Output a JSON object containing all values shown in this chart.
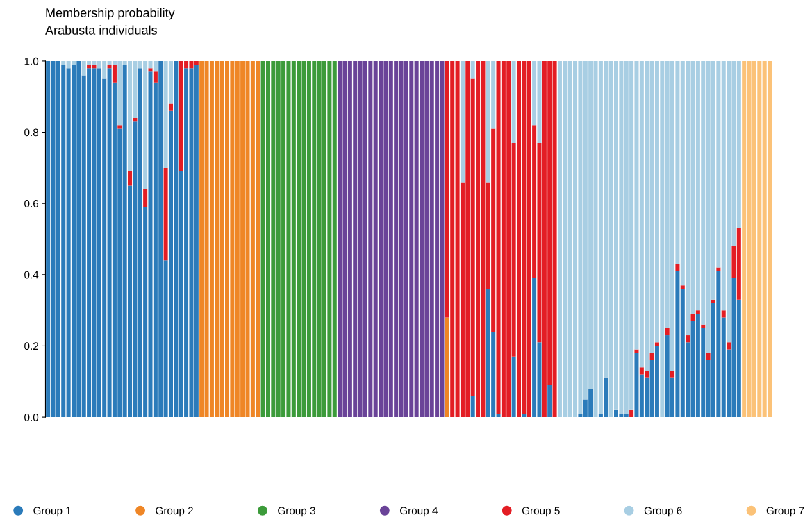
{
  "chart_data": {
    "type": "bar",
    "stacked": true,
    "title": "Membership probability",
    "subtitle": "Arabusta individuals",
    "categories": [
      null,
      null,
      null,
      null,
      null,
      null,
      null,
      null,
      null,
      null,
      null,
      null,
      null,
      null,
      null,
      null,
      null,
      null,
      null,
      null,
      null,
      null,
      null,
      null,
      null,
      null,
      null,
      null,
      null,
      null,
      null,
      null,
      null,
      null,
      null,
      null,
      null,
      null,
      null,
      null,
      null,
      null,
      null,
      null,
      null,
      null,
      null,
      null,
      null,
      null,
      null,
      null,
      null,
      null,
      null,
      null,
      null,
      null,
      null,
      null,
      null,
      null,
      null,
      null,
      null,
      null,
      null,
      null,
      null,
      null,
      null,
      null,
      null,
      null,
      null,
      null,
      null,
      null,
      null,
      null,
      null,
      null,
      null,
      null,
      null,
      null,
      null,
      null,
      null,
      null,
      null,
      null,
      null,
      null,
      null,
      null,
      null,
      null,
      null,
      null,
      null,
      null,
      null,
      null,
      null,
      null,
      null,
      null,
      null,
      null,
      null,
      null,
      null,
      null,
      null,
      null,
      null,
      null,
      null,
      null,
      null,
      null,
      null,
      null,
      null,
      null,
      null,
      null,
      null,
      null,
      null,
      null,
      null,
      null,
      null,
      null,
      null,
      null,
      null,
      null,
      null,
      null
    ],
    "series": [
      {
        "name": "Group 1",
        "color": "#2b7bba",
        "values": [
          1,
          1,
          1,
          0.99,
          0.98,
          0.99,
          1,
          0.96,
          0.98,
          0.98,
          0.98,
          0.95,
          0.98,
          0.94,
          0.81,
          0.99,
          0.65,
          0.83,
          0.98,
          0.59,
          0.97,
          0.94,
          1,
          0.44,
          0.86,
          1,
          0.69,
          0.98,
          0.98,
          0.99,
          0,
          0,
          0,
          0,
          0,
          0,
          0,
          0,
          0,
          0,
          0,
          0,
          0,
          0,
          0,
          0,
          0,
          0,
          0,
          0,
          0,
          0,
          0,
          0,
          0,
          0,
          0,
          0,
          0,
          0,
          0,
          0,
          0,
          0,
          0,
          0,
          0,
          0,
          0,
          0,
          0,
          0,
          0,
          0,
          0,
          0,
          0,
          0,
          0,
          0,
          0,
          0,
          0,
          0.06,
          0,
          0,
          0.36,
          0.24,
          0.01,
          0,
          0,
          0.17,
          0,
          0.01,
          0,
          0.39,
          0.21,
          0,
          0.09,
          0,
          0,
          0,
          0,
          0,
          0.01,
          0.05,
          0.08,
          0,
          0.01,
          0.11,
          0,
          0.02,
          0.01,
          0.01,
          0,
          0.18,
          0.12,
          0.11,
          0.16,
          0.2,
          0,
          0.23,
          0.11,
          0.41,
          0.36,
          0.21,
          0.27,
          0.29,
          0.25,
          0.16,
          0.32,
          0.41,
          0.28,
          0.19,
          0.39,
          0.33,
          0,
          0,
          0,
          0,
          0,
          0
        ]
      },
      {
        "name": "Group 2",
        "color": "#ef8626",
        "values": [
          0,
          0,
          0,
          0,
          0,
          0,
          0,
          0,
          0,
          0,
          0,
          0,
          0,
          0,
          0,
          0,
          0,
          0,
          0,
          0,
          0,
          0,
          0,
          0,
          0,
          0,
          0,
          0,
          0,
          0,
          1,
          1,
          1,
          1,
          1,
          1,
          1,
          1,
          1,
          1,
          1,
          1,
          0,
          0,
          0,
          0,
          0,
          0,
          0,
          0,
          0,
          0,
          0,
          0,
          0,
          0,
          0,
          0,
          0,
          0,
          0,
          0,
          0,
          0,
          0,
          0,
          0,
          0,
          0,
          0,
          0,
          0,
          0,
          0,
          0,
          0,
          0,
          0,
          0.28,
          0,
          0,
          0,
          0,
          0,
          0,
          0,
          0,
          0,
          0,
          0,
          0,
          0,
          0,
          0,
          0,
          0,
          0,
          0,
          0,
          0,
          0,
          0,
          0,
          0,
          0,
          0,
          0,
          0,
          0,
          0,
          0,
          0,
          0,
          0,
          0,
          0,
          0,
          0,
          0,
          0,
          0,
          0,
          0,
          0,
          0,
          0,
          0,
          0,
          0,
          0,
          0,
          0,
          0,
          0,
          0,
          0,
          0,
          0,
          0,
          0,
          0,
          0
        ]
      },
      {
        "name": "Group 3",
        "color": "#3c9b3a",
        "values": [
          0,
          0,
          0,
          0,
          0,
          0,
          0,
          0,
          0,
          0,
          0,
          0,
          0,
          0,
          0,
          0,
          0,
          0,
          0,
          0,
          0,
          0,
          0,
          0,
          0,
          0,
          0,
          0,
          0,
          0,
          0,
          0,
          0,
          0,
          0,
          0,
          0,
          0,
          0,
          0,
          0,
          0,
          1,
          1,
          1,
          1,
          1,
          1,
          1,
          1,
          1,
          1,
          1,
          1,
          1,
          1,
          1,
          0,
          0,
          0,
          0,
          0,
          0,
          0,
          0,
          0,
          0,
          0,
          0,
          0,
          0,
          0,
          0,
          0,
          0,
          0,
          0,
          0,
          0,
          0,
          0,
          0,
          0,
          0,
          0,
          0,
          0,
          0,
          0,
          0,
          0,
          0,
          0,
          0,
          0,
          0,
          0,
          0,
          0,
          0,
          0,
          0,
          0,
          0,
          0,
          0,
          0,
          0,
          0,
          0,
          0,
          0,
          0,
          0,
          0,
          0,
          0,
          0,
          0,
          0,
          0,
          0,
          0,
          0,
          0,
          0,
          0,
          0,
          0,
          0,
          0,
          0,
          0,
          0,
          0,
          0,
          0,
          0,
          0,
          0,
          0,
          0
        ]
      },
      {
        "name": "Group 4",
        "color": "#6a4398",
        "values": [
          0,
          0,
          0,
          0,
          0,
          0,
          0,
          0,
          0,
          0,
          0,
          0,
          0,
          0,
          0,
          0,
          0,
          0,
          0,
          0,
          0,
          0,
          0,
          0,
          0,
          0,
          0,
          0,
          0,
          0,
          0,
          0,
          0,
          0,
          0,
          0,
          0,
          0,
          0,
          0,
          0,
          0,
          0,
          0,
          0,
          0,
          0,
          0,
          0,
          0,
          0,
          0,
          0,
          0,
          0,
          0,
          0,
          1,
          1,
          1,
          1,
          1,
          1,
          1,
          1,
          1,
          1,
          1,
          1,
          1,
          1,
          1,
          1,
          1,
          1,
          1,
          1,
          1,
          0,
          0,
          0,
          0,
          0,
          0,
          0,
          0,
          0,
          0,
          0,
          0,
          0,
          0,
          0,
          0,
          0,
          0,
          0,
          0,
          0,
          0,
          0,
          0,
          0,
          0,
          0,
          0,
          0,
          0,
          0,
          0,
          0,
          0,
          0,
          0,
          0,
          0,
          0,
          0,
          0,
          0,
          0,
          0,
          0,
          0,
          0,
          0,
          0,
          0,
          0,
          0,
          0,
          0,
          0,
          0,
          0,
          0,
          0,
          0,
          0,
          0,
          0,
          0
        ]
      },
      {
        "name": "Group 5",
        "color": "#e31d24",
        "values": [
          0,
          0,
          0,
          0,
          0,
          0,
          0,
          0,
          0.01,
          0.01,
          0,
          0,
          0.01,
          0.05,
          0.01,
          0,
          0.04,
          0.01,
          0,
          0.05,
          0.01,
          0.03,
          0,
          0.26,
          0.02,
          0,
          0.31,
          0.02,
          0.02,
          0.01,
          0,
          0,
          0,
          0,
          0,
          0,
          0,
          0,
          0,
          0,
          0,
          0,
          0,
          0,
          0,
          0,
          0,
          0,
          0,
          0,
          0,
          0,
          0,
          0,
          0,
          0,
          0,
          0,
          0,
          0,
          0,
          0,
          0,
          0,
          0,
          0,
          0,
          0,
          0,
          0,
          0,
          0,
          0,
          0,
          0,
          0,
          0,
          0,
          0.72,
          1,
          1,
          0.66,
          1,
          0.89,
          1,
          1,
          0.3,
          0.57,
          0.99,
          1,
          1,
          0.6,
          1,
          0.99,
          1,
          0.43,
          0.56,
          1,
          0.91,
          1,
          0,
          0,
          0,
          0,
          0,
          0,
          0,
          0,
          0,
          0,
          0,
          0,
          0,
          0,
          0.02,
          0.01,
          0.02,
          0.02,
          0.02,
          0.01,
          0,
          0.02,
          0.02,
          0.02,
          0.01,
          0.02,
          0.02,
          0.01,
          0.01,
          0.02,
          0.01,
          0.01,
          0.02,
          0.02,
          0.09,
          0.2,
          0,
          0,
          0,
          0,
          0,
          0
        ]
      },
      {
        "name": "Group 6",
        "color": "#a8cee3",
        "values": [
          0,
          0,
          0,
          0.01,
          0.02,
          0.01,
          0,
          0.04,
          0.01,
          0.01,
          0.02,
          0.05,
          0.01,
          0.01,
          0.18,
          0.01,
          0.31,
          0.16,
          0.02,
          0.36,
          0.02,
          0.03,
          0,
          0.3,
          0.12,
          0,
          0,
          0,
          0,
          0,
          0,
          0,
          0,
          0,
          0,
          0,
          0,
          0,
          0,
          0,
          0,
          0,
          0,
          0,
          0,
          0,
          0,
          0,
          0,
          0,
          0,
          0,
          0,
          0,
          0,
          0,
          0,
          0,
          0,
          0,
          0,
          0,
          0,
          0,
          0,
          0,
          0,
          0,
          0,
          0,
          0,
          0,
          0,
          0,
          0,
          0,
          0,
          0,
          0,
          0,
          0,
          0.34,
          0,
          0.05,
          0,
          0,
          0.34,
          0.19,
          0,
          0,
          0,
          0.23,
          0,
          0,
          0,
          0.18,
          0.23,
          0,
          0,
          0,
          1,
          1,
          1,
          1,
          0.99,
          0.95,
          0.92,
          1,
          0.99,
          0.89,
          1,
          0.98,
          0.99,
          0.99,
          0.98,
          0.81,
          0.86,
          0.87,
          0.82,
          0.79,
          1,
          0.75,
          0.87,
          0.57,
          0.63,
          0.77,
          0.71,
          0.7,
          0.74,
          0.82,
          0.67,
          0.58,
          0.7,
          0.79,
          0.52,
          0.47,
          0,
          0,
          0,
          0,
          0,
          0
        ]
      },
      {
        "name": "Group 7",
        "color": "#fbc278",
        "values": [
          0,
          0,
          0,
          0,
          0,
          0,
          0,
          0,
          0,
          0,
          0,
          0,
          0,
          0,
          0,
          0,
          0,
          0,
          0,
          0,
          0,
          0,
          0,
          0,
          0,
          0,
          0,
          0,
          0,
          0,
          0,
          0,
          0,
          0,
          0,
          0,
          0,
          0,
          0,
          0,
          0,
          0,
          0,
          0,
          0,
          0,
          0,
          0,
          0,
          0,
          0,
          0,
          0,
          0,
          0,
          0,
          0,
          0,
          0,
          0,
          0,
          0,
          0,
          0,
          0,
          0,
          0,
          0,
          0,
          0,
          0,
          0,
          0,
          0,
          0,
          0,
          0,
          0,
          0,
          0,
          0,
          0,
          0,
          0,
          0,
          0,
          0,
          0,
          0,
          0,
          0,
          0,
          0,
          0,
          0,
          0,
          0,
          0,
          0,
          0,
          0,
          0,
          0,
          0,
          0,
          0,
          0,
          0,
          0,
          0,
          0,
          0,
          0,
          0,
          0,
          0,
          0,
          0,
          0,
          0,
          0,
          0,
          0,
          0,
          0,
          0,
          0,
          0,
          0,
          0,
          0,
          0,
          0,
          0,
          0,
          0,
          1,
          1,
          1,
          1,
          1,
          1
        ]
      }
    ],
    "ylim": [
      0,
      1
    ],
    "yticks": [
      {
        "value": 0,
        "label": "0.0"
      },
      {
        "value": 0.2,
        "label": "0.2"
      },
      {
        "value": 0.4,
        "label": "0.4"
      },
      {
        "value": 0.6,
        "label": "0.6"
      },
      {
        "value": 0.8,
        "label": "0.8"
      },
      {
        "value": 1,
        "label": "1.0"
      }
    ],
    "grid": false,
    "legend": "bottom",
    "marker": "circle"
  }
}
